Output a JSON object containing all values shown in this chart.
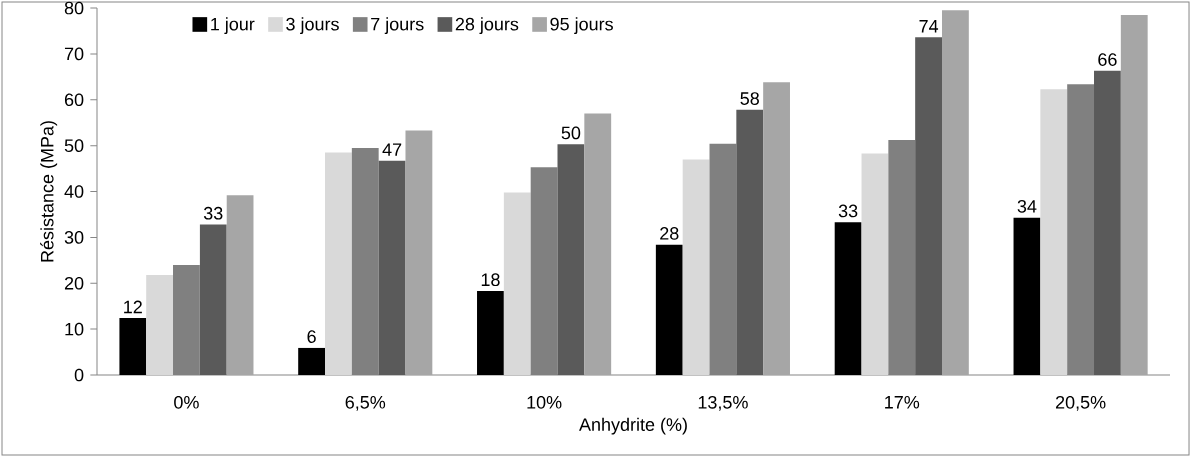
{
  "chart_data": {
    "type": "bar",
    "xlabel": "Anhydrite (%)",
    "ylabel": "Résistance (MPa)",
    "categories": [
      "0%",
      "6,5%",
      "10%",
      "13,5%",
      "17%",
      "20,5%"
    ],
    "series": [
      {
        "name": "1 jour",
        "color": "#000000",
        "values": [
          12.4,
          5.9,
          18.3,
          28.4,
          33.3,
          34.3
        ],
        "value_labels": [
          "12",
          "6",
          "18",
          "28",
          "33",
          "34"
        ]
      },
      {
        "name": "3 jours",
        "color": "#d9d9d9",
        "values": [
          21.8,
          48.5,
          39.8,
          47.0,
          48.3,
          62.3
        ]
      },
      {
        "name": "7 jours",
        "color": "#808080",
        "values": [
          24.0,
          49.5,
          45.3,
          50.4,
          51.2,
          63.4
        ]
      },
      {
        "name": "28 jours",
        "color": "#5a5a5a",
        "values": [
          32.8,
          46.7,
          50.3,
          57.8,
          73.6,
          66.3
        ],
        "value_labels": [
          "33",
          "47",
          "50",
          "58",
          "74",
          "66"
        ]
      },
      {
        "name": "95 jours",
        "color": "#a6a6a6",
        "values": [
          39.2,
          53.3,
          57.0,
          63.8,
          79.5,
          78.5
        ]
      }
    ],
    "ylim": [
      0,
      80
    ],
    "yticks": [
      0,
      10,
      20,
      30,
      40,
      50,
      60,
      70,
      80
    ],
    "grid": false,
    "legend": "top left"
  }
}
